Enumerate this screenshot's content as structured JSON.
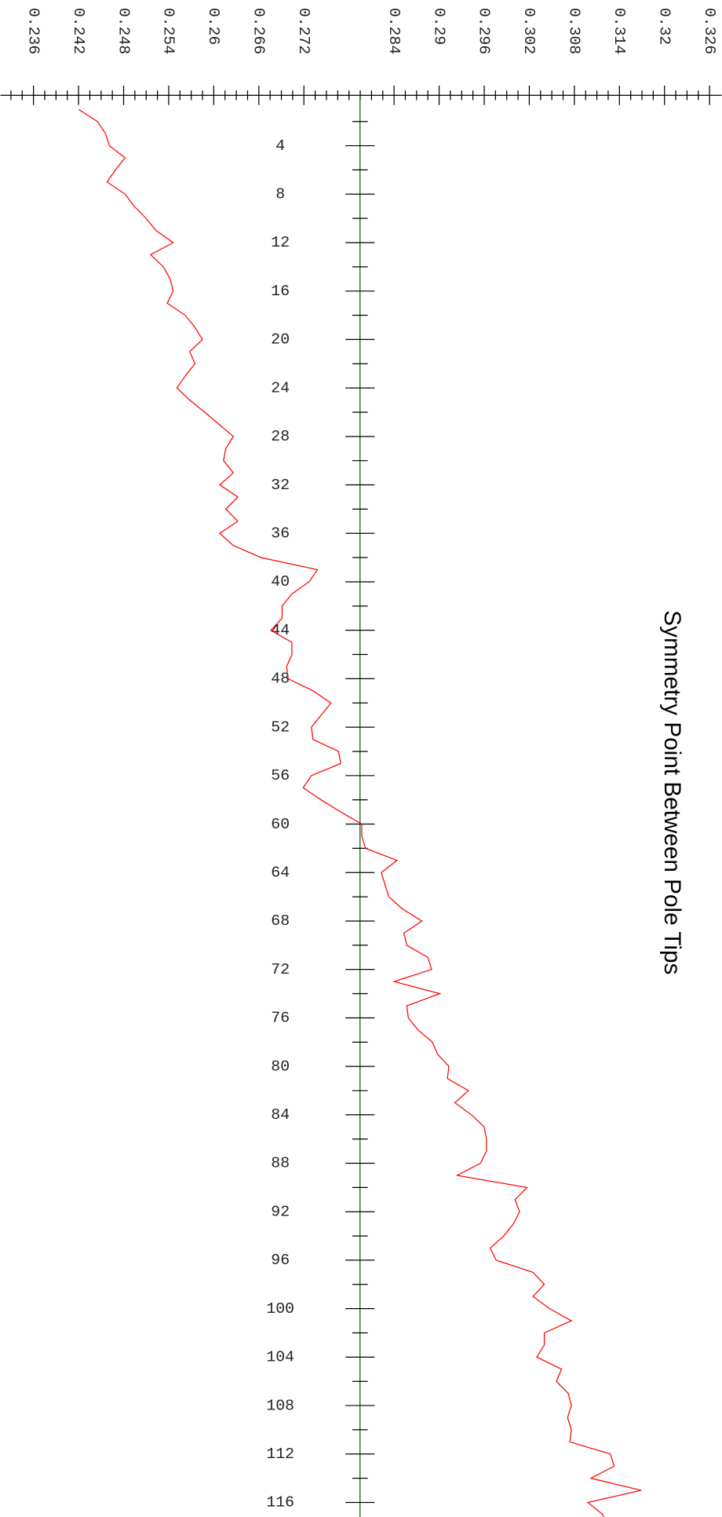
{
  "chart_data": {
    "type": "line",
    "title": "Symmetry Point Between Pole Tips",
    "x": [
      1,
      2,
      3,
      4,
      5,
      6,
      7,
      8,
      9,
      10,
      11,
      12,
      13,
      14,
      15,
      16,
      17,
      18,
      19,
      20,
      21,
      22,
      23,
      24,
      25,
      26,
      27,
      28,
      29,
      30,
      31,
      32,
      33,
      34,
      35,
      36,
      37,
      38,
      39,
      40,
      41,
      42,
      43,
      44,
      45,
      46,
      47,
      48,
      49,
      50,
      51,
      52,
      53,
      54,
      55,
      56,
      57,
      58,
      59,
      60,
      61,
      62,
      63,
      64,
      65,
      66,
      67,
      68,
      69,
      70,
      71,
      72,
      73,
      74,
      75,
      76,
      77,
      78,
      79,
      80,
      81,
      82,
      83,
      84,
      85,
      86,
      87,
      88,
      89,
      90,
      91,
      92,
      93,
      94,
      95,
      96,
      97,
      98,
      99,
      100,
      101,
      102,
      103,
      104,
      105,
      106,
      107,
      108,
      109,
      110,
      111,
      112,
      113,
      114,
      115,
      116,
      117,
      118
    ],
    "series": [
      {
        "color": "#ff0000",
        "values": [
          0.242,
          0.2445,
          0.2456,
          0.2461,
          0.2482,
          0.2469,
          0.2458,
          0.2482,
          0.2494,
          0.251,
          0.2523,
          0.2546,
          0.2516,
          0.2533,
          0.2542,
          0.2546,
          0.2538,
          0.2562,
          0.2575,
          0.2585,
          0.2568,
          0.2575,
          0.2562,
          0.2551,
          0.2568,
          0.2588,
          0.2607,
          0.2626,
          0.2616,
          0.2613,
          0.2626,
          0.2608,
          0.2632,
          0.2616,
          0.2632,
          0.2608,
          0.2626,
          0.2663,
          0.2738,
          0.2727,
          0.2704,
          0.2691,
          0.2691,
          0.2676,
          0.2704,
          0.2704,
          0.2697,
          0.2699,
          0.2732,
          0.2756,
          0.2743,
          0.273,
          0.2732,
          0.2766,
          0.2769,
          0.273,
          0.2719,
          0.2743,
          0.2769,
          0.2797,
          0.2797,
          0.2802,
          0.2844,
          0.2823,
          0.2828,
          0.2833,
          0.2851,
          0.2877,
          0.2853,
          0.2857,
          0.2885,
          0.289,
          0.284,
          0.2901,
          0.2857,
          0.2859,
          0.2872,
          0.2891,
          0.2898,
          0.2913,
          0.2911,
          0.2939,
          0.2921,
          0.2943,
          0.296,
          0.2963,
          0.2963,
          0.2955,
          0.2924,
          0.3017,
          0.3001,
          0.3007,
          0.2999,
          0.2986,
          0.2968,
          0.2976,
          0.3025,
          0.304,
          0.3025,
          0.3047,
          0.3076,
          0.304,
          0.304,
          0.303,
          0.3063,
          0.3056,
          0.3072,
          0.3076,
          0.3071,
          0.3076,
          0.3074,
          0.3128,
          0.3133,
          0.3102,
          0.3169,
          0.3098,
          0.3118,
          0.3118
        ]
      }
    ],
    "value_axis_color": "#000000",
    "index_axis_color": "#006400",
    "vlim": [
      0.2316,
      0.3276
    ],
    "vticks": [
      0.236,
      0.242,
      0.248,
      0.254,
      0.26,
      0.266,
      0.272,
      0.284,
      0.29,
      0.296,
      0.302,
      0.308,
      0.314,
      0.32,
      0.326
    ],
    "vticks_minor": [
      0.233,
      0.2345,
      0.2375,
      0.239,
      0.2405,
      0.2435,
      0.245,
      0.2465,
      0.2495,
      0.251,
      0.2525,
      0.2555,
      0.257,
      0.2585,
      0.2615,
      0.263,
      0.2645,
      0.2675,
      0.269,
      0.2705,
      0.2735,
      0.275,
      0.2765,
      0.278,
      0.2795,
      0.281,
      0.2825,
      0.2855,
      0.287,
      0.2885,
      0.2915,
      0.293,
      0.2945,
      0.2975,
      0.299,
      0.3005,
      0.3035,
      0.305,
      0.3065,
      0.3095,
      0.311,
      0.3125,
      0.3155,
      0.317,
      0.3185,
      0.3215,
      0.323,
      0.3245
    ],
    "xlim": [
      0,
      117.2
    ],
    "xticks": [
      4,
      8,
      12,
      16,
      20,
      24,
      28,
      32,
      36,
      40,
      44,
      48,
      52,
      56,
      60,
      64,
      68,
      72,
      76,
      80,
      84,
      88,
      92,
      96,
      100,
      104,
      108,
      112,
      116
    ],
    "xticks_minor": [
      2,
      6,
      10,
      14,
      18,
      22,
      26,
      30,
      34,
      38,
      42,
      46,
      50,
      54,
      58,
      62,
      66,
      70,
      74,
      78,
      82,
      86,
      90,
      94,
      98,
      102,
      106,
      110,
      114
    ]
  }
}
